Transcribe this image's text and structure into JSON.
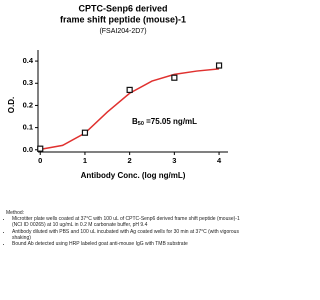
{
  "chart_data": {
    "type": "scatter",
    "title": [
      "CPTC-Senp6 derived",
      "frame shift peptide (mouse)-1"
    ],
    "subtitle": "(FSAI204-2D7)",
    "x_label": "Antibody Conc. (log ng/mL)",
    "y_label": "O.D.",
    "annotation": {
      "main": "B",
      "sub": "50",
      "rest": " =75.05 ng/mL"
    },
    "xlim": [
      -0.05,
      4.2
    ],
    "ylim": [
      -0.01,
      0.45
    ],
    "xticks": [
      0,
      1,
      2,
      3,
      4
    ],
    "yticks": [
      {
        "value": 0,
        "label": "0.0"
      },
      {
        "value": 0.1,
        "label": "0.1"
      },
      {
        "value": 0.2,
        "label": "0.2"
      },
      {
        "value": 0.3,
        "label": "0.3"
      },
      {
        "value": 0.4,
        "label": "0.4"
      }
    ],
    "series": [
      {
        "type": "line",
        "color": "#e0312f",
        "x": [
          0,
          0.5,
          1,
          1.5,
          2,
          2.5,
          3,
          3.5,
          4
        ],
        "values": [
          0.002,
          0.02,
          0.075,
          0.17,
          0.255,
          0.31,
          0.34,
          0.355,
          0.365
        ]
      },
      {
        "type": "scatter",
        "color": "#111111",
        "x": [
          0,
          1,
          2,
          3,
          4
        ],
        "values": [
          0.005,
          0.077,
          0.27,
          0.325,
          0.38
        ]
      }
    ]
  },
  "method": {
    "heading": "Method:",
    "items": [
      "Microtiter plate wells coated at 37°C with 100 uL of CPTC-Senp6 derived frame shift peptide (mouse)-1 (NCI ID 00265) at 10 ug/mL in 0.2 M carbonate buffer, pH 9.4",
      "Antibody diluted with PBS and 100 uL incubated with Ag coated wells for 30 min at 37°C (with vigorous shaking)",
      "Bound Ab detected using HRP labeled goat anti-mouse IgG with TMB substrate"
    ]
  }
}
